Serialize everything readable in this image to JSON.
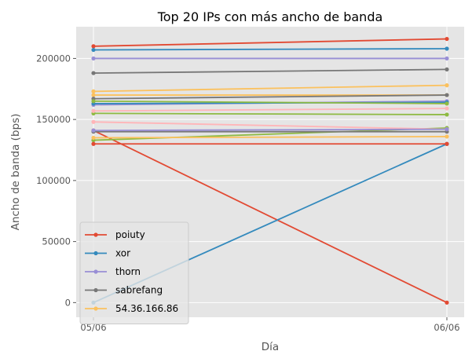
{
  "chart_data": {
    "type": "line",
    "title": "Top 20 IPs con más ancho de banda",
    "xlabel": "Día",
    "ylabel": "Ancho de banda (bps)",
    "categories": [
      "05/06",
      "06/06"
    ],
    "ylim": [
      -12000,
      226000
    ],
    "yticks": [
      0,
      50000,
      100000,
      150000,
      200000
    ],
    "grid": true,
    "legend_position": "lower-left",
    "series": [
      {
        "name": "poiuty",
        "color": "#E24A33",
        "values": [
          141000,
          0
        ]
      },
      {
        "name": "xor",
        "color": "#348ABD",
        "values": [
          0,
          130000
        ]
      },
      {
        "name": "thorn",
        "color": "#988ED5",
        "values": [
          200000,
          200000
        ]
      },
      {
        "name": "sabrefang",
        "color": "#777777",
        "values": [
          188000,
          191000
        ]
      },
      {
        "name": "54.36.166.86",
        "color": "#FBC15E",
        "values": [
          173000,
          178000
        ]
      },
      {
        "name": "",
        "color": "#8EBA42",
        "values": [
          133000,
          143000
        ]
      },
      {
        "name": "",
        "color": "#FFB5B8",
        "values": [
          148000,
          142000
        ]
      },
      {
        "name": "",
        "color": "#E24A33",
        "values": [
          210000,
          216000
        ]
      },
      {
        "name": "",
        "color": "#348ABD",
        "values": [
          207000,
          208000
        ]
      },
      {
        "name": "",
        "color": "#988ED5",
        "values": [
          162000,
          165000
        ]
      },
      {
        "name": "",
        "color": "#777777",
        "values": [
          140000,
          140000
        ]
      },
      {
        "name": "",
        "color": "#FBC15E",
        "values": [
          170000,
          170000
        ]
      },
      {
        "name": "",
        "color": "#8EBA42",
        "values": [
          155000,
          154000
        ]
      },
      {
        "name": "",
        "color": "#FFB5B8",
        "values": [
          157000,
          159000
        ]
      },
      {
        "name": "",
        "color": "#E24A33",
        "values": [
          130000,
          130000
        ]
      },
      {
        "name": "",
        "color": "#348ABD",
        "values": [
          163000,
          164000
        ]
      },
      {
        "name": "",
        "color": "#988ED5",
        "values": [
          141000,
          142000
        ]
      },
      {
        "name": "",
        "color": "#777777",
        "values": [
          167000,
          170000
        ]
      },
      {
        "name": "",
        "color": "#FBC15E",
        "values": [
          135000,
          136000
        ]
      },
      {
        "name": "",
        "color": "#8EBA42",
        "values": [
          165000,
          163000
        ]
      }
    ]
  }
}
